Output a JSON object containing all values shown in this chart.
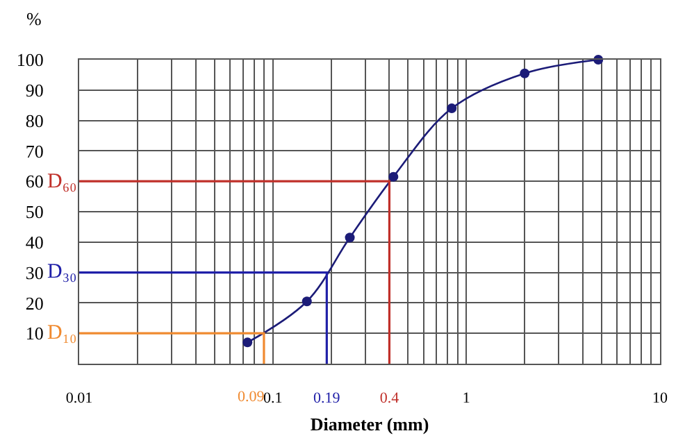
{
  "chart_data": {
    "type": "line",
    "ylabel": "%",
    "xlabel": "Diameter (mm)",
    "log": "x",
    "xlim": [
      0.01,
      10
    ],
    "xticks": [
      0.01,
      0.1,
      0.19,
      0.4,
      1,
      10
    ],
    "annotations": [
      {
        "text": "0.09",
        "x": 0.09,
        "y": 0
      }
    ],
    "ylim": [
      0,
      100
    ],
    "yticks": [
      10,
      20,
      30,
      40,
      50,
      60,
      70,
      80,
      90,
      100
    ],
    "grid": true,
    "series": [
      {
        "color": "#1c1c78",
        "marker": "circle",
        "x": [
          0.074,
          0.15,
          0.25,
          0.42,
          0.84,
          2,
          4.8
        ],
        "values": [
          7,
          20.5,
          41.5,
          61.5,
          84,
          95.5,
          100
        ]
      },
      {
        "name": "D₆₀",
        "color": "#c0302a",
        "marker": "none",
        "x": [
          0.01,
          0.4,
          0.4
        ],
        "values": [
          60,
          60,
          0
        ]
      },
      {
        "name": "D₃₀",
        "color": "#2020a8",
        "marker": "none",
        "x": [
          0.01,
          0.19,
          0.19
        ],
        "values": [
          30,
          30,
          0
        ]
      },
      {
        "name": "D₁₀",
        "color": "#f08a30",
        "marker": "none",
        "x": [
          0.01,
          0.09,
          0.09
        ],
        "values": [
          10,
          10,
          0
        ]
      }
    ]
  }
}
